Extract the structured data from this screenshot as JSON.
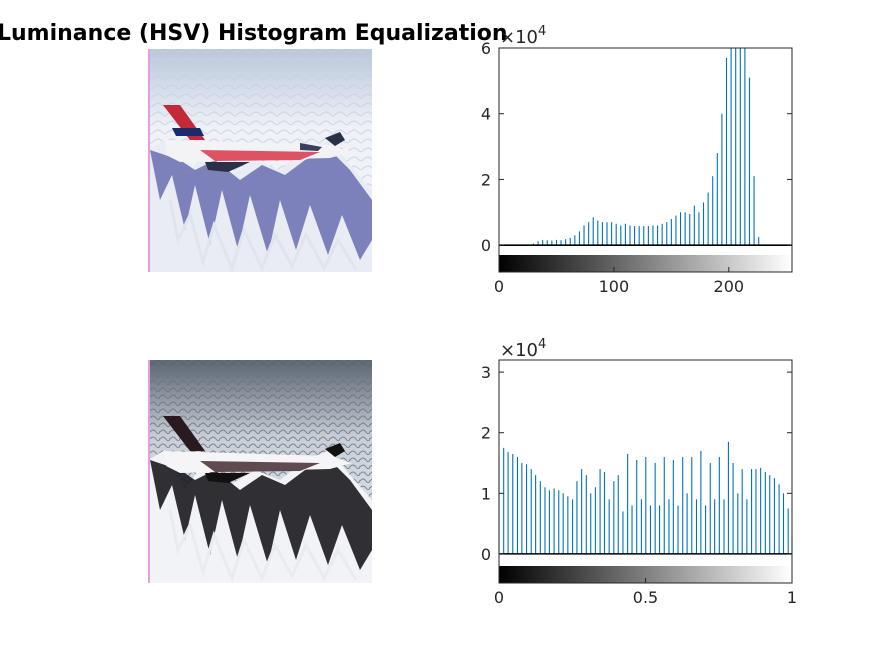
{
  "figure": {
    "title": "Luminance (HSV) Histogram Equalization"
  },
  "images": [
    {
      "name": "original-jet-image",
      "description_icon": "f16-jet-over-mountains"
    },
    {
      "name": "equalized-jet-image",
      "description_icon": "f16-jet-over-mountains-equalized"
    }
  ],
  "chart_data": [
    {
      "type": "bar",
      "title": "",
      "xlabel": "",
      "ylabel": "",
      "exponent_label": "×10",
      "exponent_power": "4",
      "xlim": [
        0,
        255
      ],
      "ylim": [
        -3000,
        60000
      ],
      "xticks": [
        0,
        100,
        200
      ],
      "xtick_labels": [
        "0",
        "100",
        "200"
      ],
      "yticks": [
        0,
        20000,
        40000,
        60000
      ],
      "ytick_labels": [
        "0",
        "2",
        "4",
        "6"
      ],
      "bar_color": "#0072BD",
      "colorbar": "gray",
      "x": [
        30,
        34,
        38,
        42,
        46,
        50,
        54,
        58,
        62,
        66,
        70,
        74,
        78,
        82,
        86,
        90,
        94,
        98,
        102,
        106,
        110,
        114,
        118,
        122,
        126,
        130,
        134,
        138,
        142,
        146,
        150,
        154,
        158,
        162,
        166,
        170,
        174,
        178,
        182,
        186,
        190,
        194,
        198,
        202,
        206,
        210,
        214,
        218,
        222,
        226
      ],
      "values": [
        500,
        1200,
        1600,
        1500,
        1400,
        1600,
        1500,
        1800,
        2200,
        3000,
        4200,
        6000,
        7000,
        8500,
        7500,
        7000,
        7000,
        7000,
        6500,
        6000,
        6500,
        6000,
        5800,
        5800,
        5800,
        5800,
        6000,
        6000,
        6500,
        7000,
        8000,
        9000,
        10000,
        10000,
        9500,
        12000,
        10000,
        13000,
        16000,
        21000,
        28000,
        40000,
        57000,
        63000,
        63000,
        63000,
        63000,
        51000,
        21000,
        2500
      ]
    },
    {
      "type": "bar",
      "title": "",
      "xlabel": "",
      "ylabel": "",
      "exponent_label": "×10",
      "exponent_power": "4",
      "xlim": [
        0,
        1
      ],
      "ylim": [
        -2000,
        32000
      ],
      "xticks": [
        0,
        0.5,
        1
      ],
      "xtick_labels": [
        "0",
        "0.5",
        "1"
      ],
      "yticks": [
        0,
        10000,
        20000,
        30000
      ],
      "ytick_labels": [
        "0",
        "1",
        "2",
        "3"
      ],
      "bar_color": "#0072BD",
      "colorbar": "gray",
      "x": [
        0,
        0.016,
        0.031,
        0.047,
        0.063,
        0.078,
        0.094,
        0.11,
        0.125,
        0.141,
        0.157,
        0.172,
        0.188,
        0.204,
        0.219,
        0.235,
        0.251,
        0.266,
        0.282,
        0.298,
        0.313,
        0.329,
        0.345,
        0.36,
        0.376,
        0.392,
        0.407,
        0.423,
        0.439,
        0.454,
        0.47,
        0.486,
        0.501,
        0.517,
        0.533,
        0.548,
        0.564,
        0.58,
        0.595,
        0.611,
        0.627,
        0.642,
        0.658,
        0.674,
        0.689,
        0.705,
        0.721,
        0.736,
        0.752,
        0.768,
        0.783,
        0.799,
        0.815,
        0.83,
        0.846,
        0.862,
        0.877,
        0.893,
        0.909,
        0.924,
        0.94,
        0.956,
        0.971,
        0.987,
        1.0
      ],
      "values": [
        16000,
        17500,
        16800,
        16500,
        16000,
        15000,
        14800,
        14000,
        13000,
        12000,
        11000,
        10500,
        10800,
        10500,
        10000,
        9500,
        9000,
        12000,
        14000,
        13000,
        10000,
        11000,
        14000,
        13500,
        9000,
        12000,
        13000,
        7000,
        16500,
        8000,
        15500,
        9000,
        16000,
        8000,
        15000,
        8000,
        16000,
        9000,
        15500,
        8000,
        16000,
        10000,
        16000,
        9000,
        17000,
        8000,
        15000,
        9000,
        16000,
        9000,
        18500,
        15000,
        10000,
        14000,
        9000,
        14000,
        14000,
        14200,
        13500,
        13000,
        12500,
        11500,
        10000,
        7500,
        3000
      ]
    }
  ]
}
